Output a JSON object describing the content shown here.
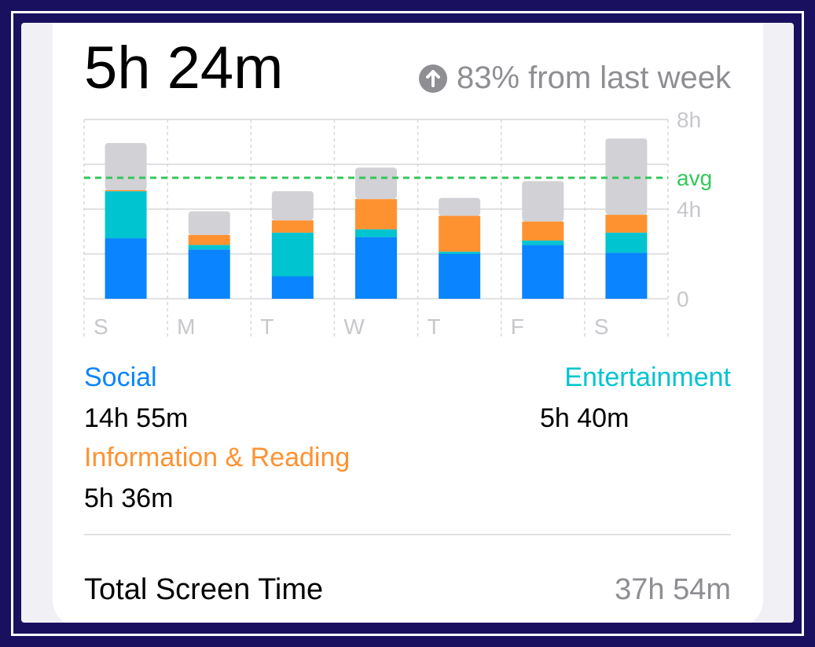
{
  "summary": {
    "daily_average": "5h 24m",
    "trend_text": "83% from last week",
    "trend_icon": "arrow-up-circle-icon"
  },
  "colors": {
    "social": "#0a84ff",
    "entertainment": "#00c4d0",
    "information": "#ff9230",
    "other": "#d1d1d6",
    "avg": "#34c759",
    "grid": "#d8d8dc",
    "label": "#c7c7cc"
  },
  "chart_data": {
    "type": "bar",
    "stacked": true,
    "categories": [
      "S",
      "M",
      "T",
      "W",
      "T",
      "F",
      "S"
    ],
    "series": [
      {
        "name": "Social",
        "values": [
          2.7,
          2.2,
          1.0,
          2.75,
          2.0,
          2.4,
          2.05
        ]
      },
      {
        "name": "Entertainment",
        "values": [
          2.1,
          0.2,
          1.95,
          0.35,
          0.1,
          0.2,
          0.9
        ]
      },
      {
        "name": "Information & Reading",
        "values": [
          0.05,
          0.45,
          0.55,
          1.35,
          1.6,
          0.85,
          0.8
        ]
      },
      {
        "name": "",
        "values": [
          2.1,
          1.05,
          1.3,
          1.4,
          0.8,
          1.8,
          3.4
        ]
      }
    ],
    "y_ticks": [
      "8h",
      "4h",
      "0"
    ],
    "ylim": [
      0,
      8
    ],
    "avg_value": 5.4,
    "avg_label": "avg",
    "grid": true
  },
  "legend": [
    {
      "name": "Social",
      "value": "14h 55m"
    },
    {
      "name": "Entertainment",
      "value": "5h 40m"
    },
    {
      "name": "Information & Reading",
      "value": "5h 36m"
    }
  ],
  "total": {
    "label": "Total Screen Time",
    "value": "37h 54m"
  }
}
